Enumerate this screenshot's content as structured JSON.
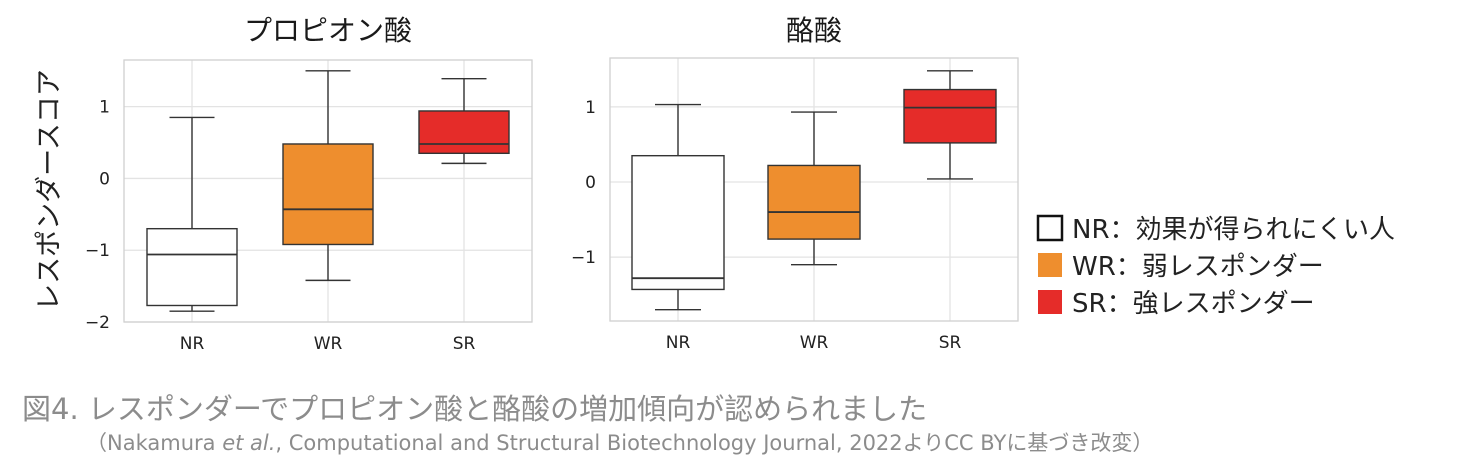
{
  "y_axis_label": "レスポンダースコア",
  "legend": [
    {
      "label": "NR：効果が得られにくい人",
      "color": "#ffffff"
    },
    {
      "label": "WR：弱レスポンダー",
      "color": "#ee8e2e"
    },
    {
      "label": "SR：強レスポンダー",
      "color": "#e52c29"
    }
  ],
  "caption": {
    "main": "図4. レスポンダーでプロピオン酸と酪酸の増加傾向が認められました",
    "source_prefix": "（Nakamura ",
    "source_italic": "et al.",
    "source_suffix": ", Computational and Structural Biotechnology Journal, 2022よりCC BYに基づき改変）"
  },
  "chart_data": [
    {
      "type": "box",
      "title": "プロピオン酸",
      "categories": [
        "NR",
        "WR",
        "SR"
      ],
      "colors": [
        "#ffffff",
        "#ee8e2e",
        "#e52c29"
      ],
      "ylim": [
        -2,
        1.65
      ],
      "yticks": [
        -2,
        -1,
        0,
        1
      ],
      "grid": true,
      "boxes": [
        {
          "whisker_low": -1.85,
          "q1": -1.77,
          "median": -1.06,
          "q3": -0.7,
          "whisker_high": 0.85
        },
        {
          "whisker_low": -1.42,
          "q1": -0.92,
          "median": -0.43,
          "q3": 0.48,
          "whisker_high": 1.5
        },
        {
          "whisker_low": 0.21,
          "q1": 0.35,
          "median": 0.48,
          "q3": 0.94,
          "whisker_high": 1.39
        }
      ]
    },
    {
      "type": "box",
      "title": "酪酸",
      "categories": [
        "NR",
        "WR",
        "SR"
      ],
      "colors": [
        "#ffffff",
        "#ee8e2e",
        "#e52c29"
      ],
      "ylim": [
        -1.85,
        1.65
      ],
      "yticks": [
        -1,
        0,
        1
      ],
      "grid": true,
      "boxes": [
        {
          "whisker_low": -1.7,
          "q1": -1.43,
          "median": -1.28,
          "q3": 0.35,
          "whisker_high": 1.03
        },
        {
          "whisker_low": -1.1,
          "q1": -0.76,
          "median": -0.4,
          "q3": 0.22,
          "whisker_high": 0.93
        },
        {
          "whisker_low": 0.04,
          "q1": 0.52,
          "median": 0.99,
          "q3": 1.23,
          "whisker_high": 1.48
        }
      ]
    }
  ]
}
